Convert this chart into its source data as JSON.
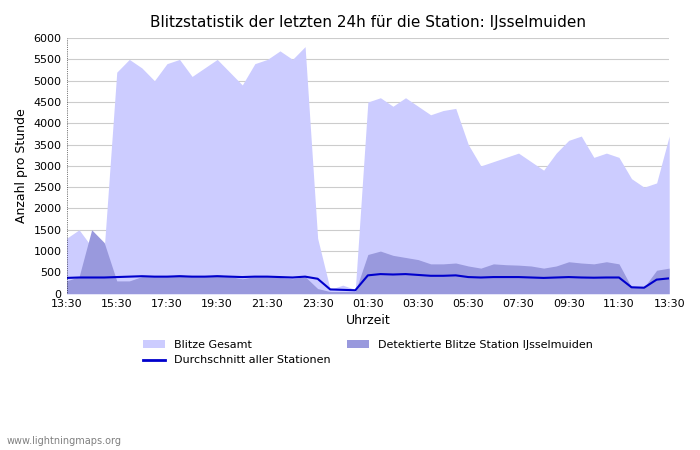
{
  "title": "Blitzstatistik der letzten 24h für die Station: IJsselmuiden",
  "xlabel": "Uhrzeit",
  "ylabel": "Anzahl pro Stunde",
  "ylim": [
    0,
    6000
  ],
  "yticks": [
    0,
    500,
    1000,
    1500,
    2000,
    2500,
    3000,
    3500,
    4000,
    4500,
    5000,
    5500,
    6000
  ],
  "xtick_labels": [
    "13:30",
    "15:30",
    "17:30",
    "19:30",
    "21:30",
    "23:30",
    "01:30",
    "03:30",
    "05:30",
    "07:30",
    "09:30",
    "11:30",
    "13:30"
  ],
  "background_color": "#ffffff",
  "grid_color": "#cccccc",
  "watermark": "www.lightningmaps.org",
  "legend": {
    "blitze_gesamt": "Blitze Gesamt",
    "detektierte": "Detektierte Blitze Station IJsselmuiden",
    "durchschnitt": "Durchschnitt aller Stationen"
  },
  "color_blitze_gesamt": "#ccccff",
  "color_detektierte": "#9999dd",
  "color_durchschnitt": "#0000cc",
  "x_indices": [
    0,
    1,
    2,
    3,
    4,
    5,
    6,
    7,
    8,
    9,
    10,
    11,
    12,
    13,
    14,
    15,
    16,
    17,
    18,
    19,
    20,
    21,
    22,
    23,
    24,
    25,
    26,
    27,
    28,
    29,
    30,
    31,
    32,
    33,
    34,
    35,
    36,
    37,
    38,
    39,
    40,
    41,
    42,
    43,
    44,
    45,
    46,
    47,
    48
  ],
  "blitze_gesamt": [
    1300,
    1500,
    1100,
    1050,
    5200,
    5500,
    5300,
    5000,
    5400,
    5500,
    5100,
    5300,
    5500,
    5200,
    4900,
    5400,
    5500,
    5700,
    5500,
    5800,
    1300,
    100,
    200,
    100,
    4500,
    4600,
    4400,
    4600,
    4400,
    4200,
    4300,
    4350,
    3500,
    3000,
    3100,
    3200,
    3300,
    3100,
    2900,
    3300,
    3600,
    3700,
    3200,
    3300,
    3200,
    2700,
    2500,
    2600,
    3700
  ],
  "detektierte": [
    300,
    400,
    1500,
    1200,
    300,
    300,
    400,
    400,
    400,
    450,
    400,
    400,
    450,
    400,
    350,
    400,
    400,
    380,
    350,
    400,
    120,
    50,
    50,
    50,
    920,
    1000,
    900,
    850,
    800,
    700,
    700,
    720,
    650,
    600,
    700,
    680,
    670,
    650,
    600,
    650,
    750,
    720,
    700,
    750,
    700,
    150,
    150,
    550,
    600
  ],
  "durchschnitt": [
    370,
    380,
    380,
    380,
    390,
    400,
    410,
    400,
    400,
    410,
    400,
    400,
    410,
    400,
    390,
    400,
    400,
    390,
    380,
    400,
    350,
    100,
    90,
    80,
    430,
    460,
    450,
    460,
    440,
    420,
    420,
    430,
    390,
    380,
    390,
    390,
    390,
    380,
    370,
    380,
    390,
    380,
    375,
    380,
    380,
    150,
    140,
    330,
    360
  ]
}
